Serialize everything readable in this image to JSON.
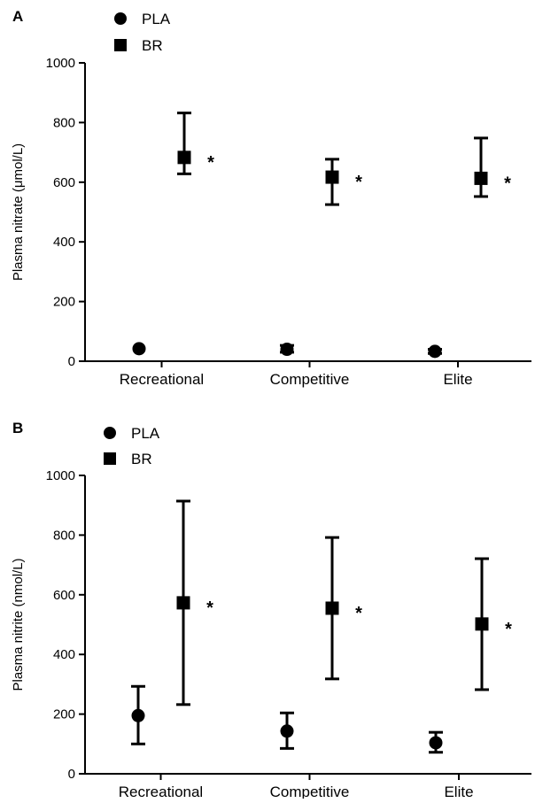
{
  "chart_data": [
    {
      "type": "scatter",
      "panel": "A",
      "title": "",
      "xlabel": "",
      "ylabel": "Plasma nitrate (μmol/L)",
      "ylim": [
        0,
        1000
      ],
      "yticks": [
        0,
        200,
        400,
        600,
        800,
        1000
      ],
      "categories": [
        "Recreational",
        "Competitive",
        "Elite"
      ],
      "legend_position": "top-left",
      "series": [
        {
          "name": "PLA",
          "marker": "circle",
          "values": [
            42,
            40,
            33
          ],
          "err_low": [
            42,
            30,
            26
          ],
          "err_high": [
            42,
            53,
            40
          ],
          "significance": [
            "",
            "",
            ""
          ]
        },
        {
          "name": "BR",
          "marker": "square",
          "values": [
            683,
            617,
            613
          ],
          "err_low": [
            628,
            525,
            552
          ],
          "err_high": [
            832,
            677,
            748
          ],
          "significance": [
            "*",
            "*",
            "*"
          ]
        }
      ]
    },
    {
      "type": "scatter",
      "panel": "B",
      "title": "",
      "xlabel": "",
      "ylabel": "Plasma nitrite (nmol/L)",
      "ylim": [
        0,
        1000
      ],
      "yticks": [
        0,
        200,
        400,
        600,
        800,
        1000
      ],
      "categories": [
        "Recreational",
        "Competitive",
        "Elite"
      ],
      "legend_position": "top-left",
      "series": [
        {
          "name": "PLA",
          "marker": "circle",
          "values": [
            195,
            143,
            104
          ],
          "err_low": [
            100,
            85,
            72
          ],
          "err_high": [
            293,
            204,
            139
          ],
          "significance": [
            "",
            "",
            ""
          ]
        },
        {
          "name": "BR",
          "marker": "square",
          "values": [
            573,
            555,
            502
          ],
          "err_low": [
            232,
            318,
            282
          ],
          "err_high": [
            914,
            792,
            721
          ],
          "significance": [
            "*",
            "*",
            "*"
          ]
        }
      ]
    }
  ]
}
